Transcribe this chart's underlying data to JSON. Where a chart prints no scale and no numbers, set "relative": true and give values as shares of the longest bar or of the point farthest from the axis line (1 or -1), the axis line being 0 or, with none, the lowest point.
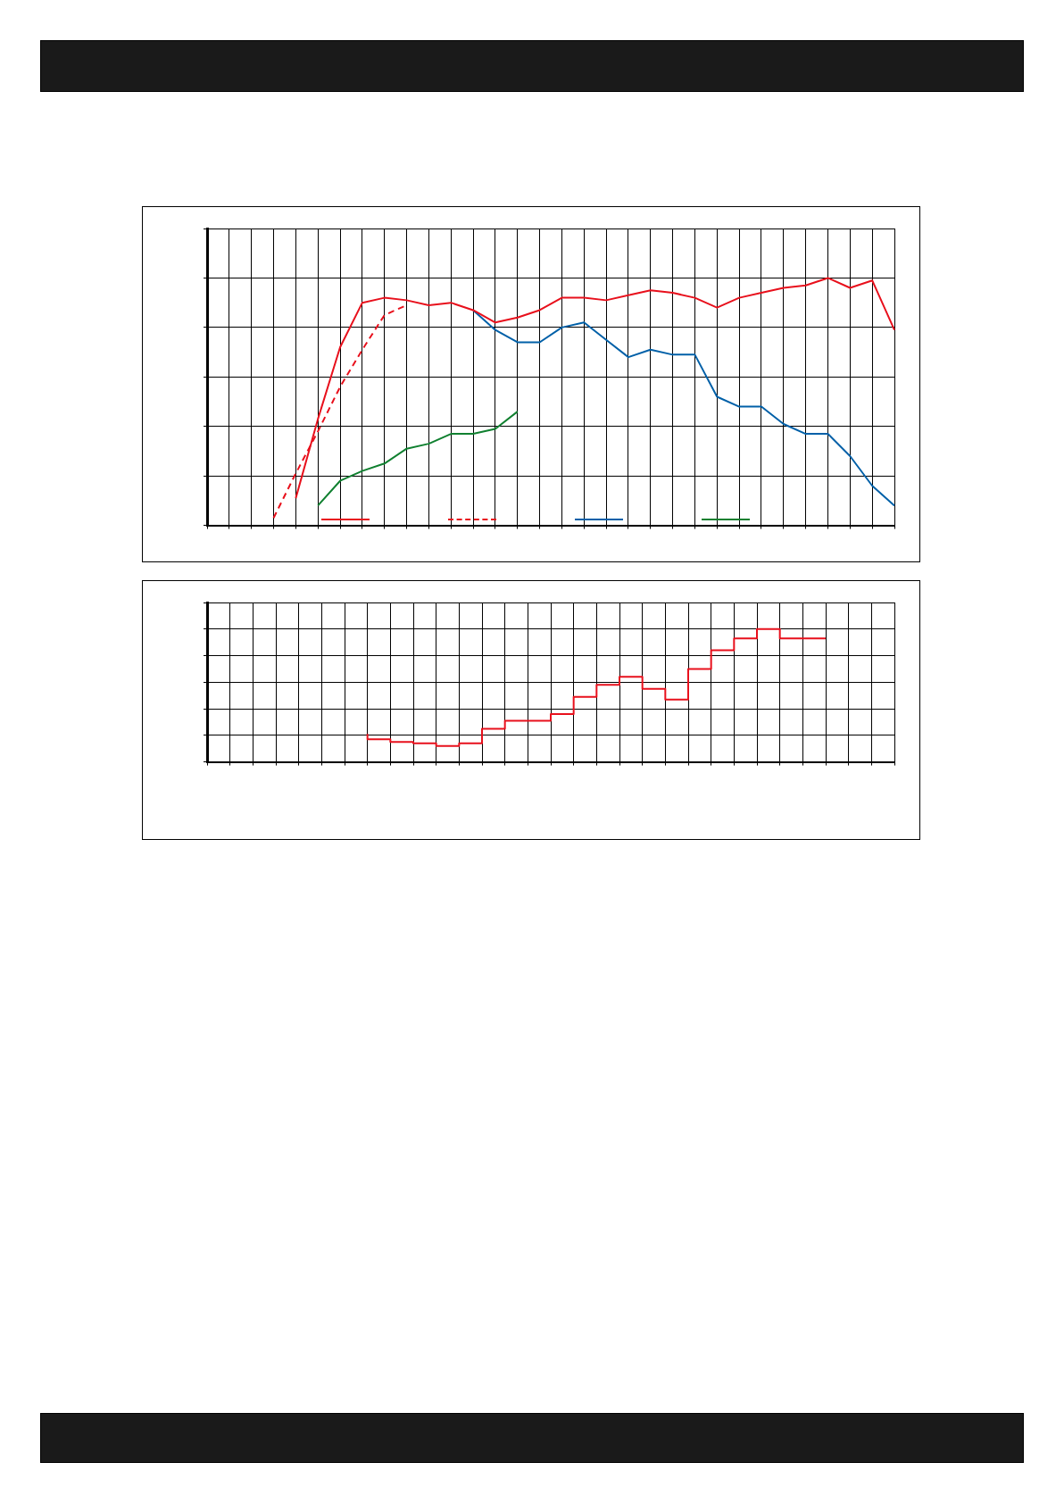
{
  "chart_data": [
    {
      "type": "line",
      "relative": true,
      "grid": true,
      "categories": [
        null,
        null,
        null,
        null,
        null,
        null,
        null,
        null,
        null,
        null,
        null,
        null,
        null,
        null,
        null,
        null,
        null,
        null,
        null,
        null,
        null,
        null,
        null,
        null,
        null,
        null,
        null,
        null,
        null,
        null,
        null,
        null
      ],
      "series": [
        {
          "color": "#e8101c",
          "values": [
            null,
            null,
            null,
            null,
            0.11,
            0.43,
            0.72,
            0.9,
            0.92,
            0.91,
            0.89,
            0.9,
            0.87,
            0.82,
            0.84,
            0.87,
            0.92,
            0.92,
            0.91,
            0.93,
            0.95,
            0.94,
            0.92,
            0.88,
            0.92,
            0.94,
            0.96,
            0.97,
            1,
            0.96,
            0.99,
            0.79
          ]
        },
        {
          "color": "#e8101c",
          "line_style": "dashed",
          "values": [
            null,
            null,
            null,
            0.03,
            0.21,
            0.38,
            0.56,
            0.71,
            0.85,
            0.89,
            null,
            null,
            null,
            null,
            null,
            null,
            null,
            null,
            null,
            null,
            null,
            null,
            null,
            null,
            null,
            null,
            null,
            null,
            null,
            null,
            null,
            null
          ]
        },
        {
          "color": "#0060a8",
          "values": [
            null,
            null,
            null,
            null,
            null,
            null,
            null,
            null,
            null,
            null,
            null,
            null,
            0.87,
            0.79,
            0.74,
            0.74,
            0.8,
            0.82,
            0.75,
            0.68,
            0.71,
            0.69,
            0.69,
            0.52,
            0.48,
            0.48,
            0.41,
            0.37,
            0.37,
            0.28,
            0.16,
            0.08
          ]
        },
        {
          "color": "#108030",
          "values": [
            null,
            null,
            null,
            null,
            null,
            0.08,
            0.18,
            0.22,
            0.25,
            0.31,
            0.33,
            0.37,
            0.37,
            0.39,
            0.46,
            null,
            null,
            null,
            null,
            null,
            null,
            null,
            null,
            null,
            null,
            null,
            null,
            null,
            null,
            null,
            null,
            null
          ]
        }
      ]
    },
    {
      "type": "step",
      "relative": true,
      "grid": true,
      "categories": [
        null,
        null,
        null,
        null,
        null,
        null,
        null,
        null,
        null,
        null,
        null,
        null,
        null,
        null,
        null,
        null,
        null,
        null,
        null,
        null,
        null,
        null,
        null,
        null,
        null,
        null,
        null,
        null,
        null,
        null,
        null
      ],
      "series": [
        {
          "color": "#e8101c",
          "values": [
            null,
            null,
            null,
            null,
            null,
            null,
            null,
            0.21,
            0.17,
            0.15,
            0.14,
            0.12,
            0.14,
            0.25,
            0.31,
            0.31,
            0.36,
            0.49,
            0.58,
            0.64,
            0.55,
            0.47,
            0.7,
            0.84,
            0.93,
            1,
            0.93,
            0.93,
            null,
            null,
            null
          ]
        }
      ]
    }
  ]
}
